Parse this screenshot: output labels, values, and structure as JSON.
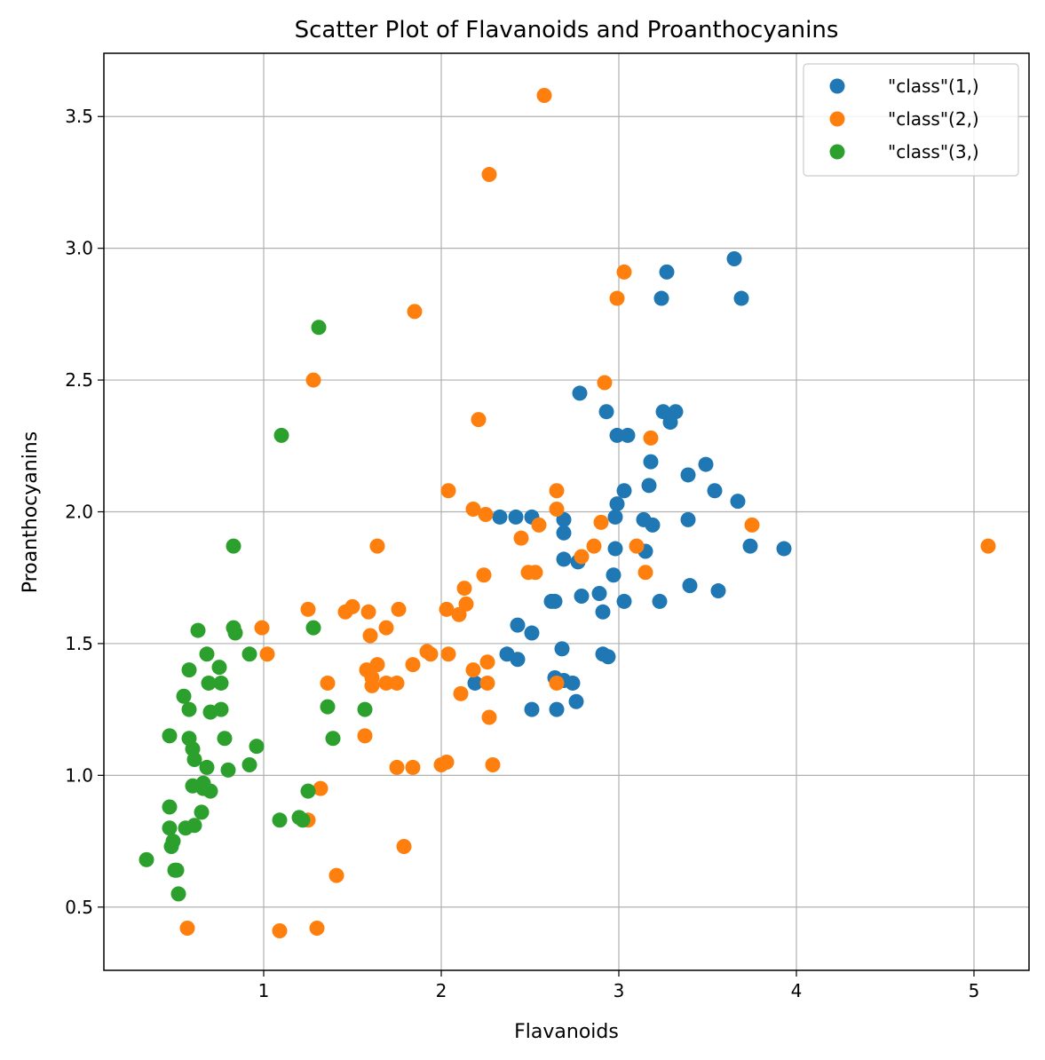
{
  "chart_data": {
    "type": "scatter",
    "title": "Scatter Plot of Flavanoids and Proanthocyanins",
    "xlabel": "Flavanoids",
    "ylabel": "Proanthocyanins",
    "xlim": [
      0.1,
      5.31
    ],
    "ylim": [
      0.26,
      3.74
    ],
    "xticks": [
      1,
      2,
      3,
      4,
      5
    ],
    "xtick_labels": [
      "1",
      "2",
      "3",
      "4",
      "5"
    ],
    "yticks": [
      0.5,
      1.0,
      1.5,
      2.0,
      2.5,
      3.0,
      3.5
    ],
    "ytick_labels": [
      "0.5",
      "1.0",
      "1.5",
      "2.0",
      "2.5",
      "3.0",
      "3.5"
    ],
    "grid": true,
    "legend_position": "top-right",
    "series": [
      {
        "name": "\"class\"(1,)",
        "color": "#1f77b4",
        "points": [
          [
            3.65,
            2.96
          ],
          [
            3.27,
            2.91
          ],
          [
            3.24,
            2.81
          ],
          [
            3.69,
            2.81
          ],
          [
            2.78,
            2.45
          ],
          [
            2.93,
            2.38
          ],
          [
            3.25,
            2.38
          ],
          [
            3.32,
            2.38
          ],
          [
            3.29,
            2.34
          ],
          [
            2.99,
            2.29
          ],
          [
            3.05,
            2.29
          ],
          [
            3.18,
            2.19
          ],
          [
            3.49,
            2.18
          ],
          [
            3.39,
            2.14
          ],
          [
            3.17,
            2.1
          ],
          [
            3.03,
            2.08
          ],
          [
            3.54,
            2.08
          ],
          [
            3.67,
            2.04
          ],
          [
            2.99,
            2.03
          ],
          [
            2.33,
            1.98
          ],
          [
            2.42,
            1.98
          ],
          [
            2.51,
            1.98
          ],
          [
            2.98,
            1.98
          ],
          [
            2.69,
            1.97
          ],
          [
            3.14,
            1.97
          ],
          [
            3.39,
            1.97
          ],
          [
            3.19,
            1.95
          ],
          [
            2.69,
            1.92
          ],
          [
            3.74,
            1.87
          ],
          [
            3.93,
            1.86
          ],
          [
            2.98,
            1.86
          ],
          [
            3.15,
            1.85
          ],
          [
            2.69,
            1.82
          ],
          [
            2.77,
            1.81
          ],
          [
            2.97,
            1.76
          ],
          [
            3.4,
            1.72
          ],
          [
            3.56,
            1.7
          ],
          [
            2.89,
            1.69
          ],
          [
            2.79,
            1.68
          ],
          [
            2.62,
            1.66
          ],
          [
            2.64,
            1.66
          ],
          [
            3.03,
            1.66
          ],
          [
            3.23,
            1.66
          ],
          [
            2.91,
            1.62
          ],
          [
            2.43,
            1.57
          ],
          [
            2.51,
            1.54
          ],
          [
            2.68,
            1.48
          ],
          [
            2.37,
            1.46
          ],
          [
            2.91,
            1.46
          ],
          [
            2.94,
            1.45
          ],
          [
            2.43,
            1.44
          ],
          [
            2.64,
            1.37
          ],
          [
            2.69,
            1.36
          ],
          [
            2.19,
            1.35
          ],
          [
            2.74,
            1.35
          ],
          [
            2.76,
            1.28
          ],
          [
            2.51,
            1.25
          ],
          [
            2.65,
            1.25
          ]
        ]
      },
      {
        "name": "\"class\"(2,)",
        "color": "#ff7f0e",
        "points": [
          [
            2.58,
            3.58
          ],
          [
            2.27,
            3.28
          ],
          [
            3.03,
            2.91
          ],
          [
            2.99,
            2.81
          ],
          [
            1.85,
            2.76
          ],
          [
            1.28,
            2.5
          ],
          [
            2.92,
            2.49
          ],
          [
            2.21,
            2.35
          ],
          [
            3.18,
            2.28
          ],
          [
            2.04,
            2.08
          ],
          [
            2.65,
            2.08
          ],
          [
            2.18,
            2.01
          ],
          [
            2.65,
            2.01
          ],
          [
            2.25,
            1.99
          ],
          [
            2.9,
            1.96
          ],
          [
            2.55,
            1.95
          ],
          [
            3.75,
            1.95
          ],
          [
            2.45,
            1.9
          ],
          [
            5.08,
            1.87
          ],
          [
            1.64,
            1.87
          ],
          [
            2.86,
            1.87
          ],
          [
            3.1,
            1.87
          ],
          [
            2.79,
            1.83
          ],
          [
            2.49,
            1.77
          ],
          [
            2.53,
            1.77
          ],
          [
            3.15,
            1.77
          ],
          [
            2.24,
            1.76
          ],
          [
            2.13,
            1.71
          ],
          [
            2.14,
            1.65
          ],
          [
            1.5,
            1.64
          ],
          [
            1.25,
            1.63
          ],
          [
            1.76,
            1.63
          ],
          [
            2.03,
            1.63
          ],
          [
            1.46,
            1.62
          ],
          [
            1.59,
            1.62
          ],
          [
            2.1,
            1.61
          ],
          [
            0.99,
            1.56
          ],
          [
            1.69,
            1.56
          ],
          [
            1.6,
            1.53
          ],
          [
            1.02,
            1.46
          ],
          [
            1.92,
            1.47
          ],
          [
            1.94,
            1.46
          ],
          [
            2.04,
            1.46
          ],
          [
            2.26,
            1.43
          ],
          [
            1.84,
            1.42
          ],
          [
            1.64,
            1.42
          ],
          [
            1.58,
            1.4
          ],
          [
            2.18,
            1.4
          ],
          [
            1.61,
            1.37
          ],
          [
            1.36,
            1.35
          ],
          [
            1.61,
            1.34
          ],
          [
            1.69,
            1.35
          ],
          [
            1.75,
            1.35
          ],
          [
            2.26,
            1.35
          ],
          [
            2.65,
            1.35
          ],
          [
            2.11,
            1.31
          ],
          [
            2.27,
            1.22
          ],
          [
            1.57,
            1.15
          ],
          [
            1.75,
            1.03
          ],
          [
            1.84,
            1.03
          ],
          [
            2.0,
            1.04
          ],
          [
            2.03,
            1.05
          ],
          [
            2.29,
            1.04
          ],
          [
            1.32,
            0.95
          ],
          [
            1.25,
            0.83
          ],
          [
            1.79,
            0.73
          ],
          [
            1.41,
            0.62
          ],
          [
            0.57,
            0.42
          ],
          [
            1.09,
            0.41
          ],
          [
            1.3,
            0.42
          ]
        ]
      },
      {
        "name": "\"class\"(3,)",
        "color": "#2ca02c",
        "points": [
          [
            1.31,
            2.7
          ],
          [
            1.1,
            2.29
          ],
          [
            0.83,
            1.87
          ],
          [
            0.83,
            1.56
          ],
          [
            0.84,
            1.54
          ],
          [
            0.63,
            1.55
          ],
          [
            1.28,
            1.56
          ],
          [
            0.68,
            1.46
          ],
          [
            0.92,
            1.46
          ],
          [
            0.75,
            1.41
          ],
          [
            0.58,
            1.4
          ],
          [
            0.69,
            1.35
          ],
          [
            0.76,
            1.35
          ],
          [
            0.55,
            1.3
          ],
          [
            1.36,
            1.26
          ],
          [
            0.58,
            1.25
          ],
          [
            0.7,
            1.24
          ],
          [
            0.76,
            1.25
          ],
          [
            1.57,
            1.25
          ],
          [
            0.78,
            1.14
          ],
          [
            1.39,
            1.14
          ],
          [
            0.58,
            1.14
          ],
          [
            0.96,
            1.11
          ],
          [
            0.6,
            1.1
          ],
          [
            0.61,
            1.06
          ],
          [
            0.68,
            1.03
          ],
          [
            0.8,
            1.02
          ],
          [
            0.92,
            1.04
          ],
          [
            0.6,
            0.96
          ],
          [
            0.66,
            0.97
          ],
          [
            0.66,
            0.95
          ],
          [
            0.7,
            0.94
          ],
          [
            1.25,
            0.94
          ],
          [
            0.47,
            0.88
          ],
          [
            0.65,
            0.86
          ],
          [
            1.2,
            0.84
          ],
          [
            1.09,
            0.83
          ],
          [
            1.22,
            0.83
          ],
          [
            0.61,
            0.81
          ],
          [
            0.56,
            0.8
          ],
          [
            0.47,
            0.8
          ],
          [
            0.49,
            0.75
          ],
          [
            0.48,
            0.73
          ],
          [
            0.34,
            0.68
          ],
          [
            0.5,
            0.64
          ],
          [
            0.51,
            0.64
          ],
          [
            0.52,
            0.55
          ],
          [
            0.47,
            1.15
          ]
        ]
      }
    ]
  }
}
